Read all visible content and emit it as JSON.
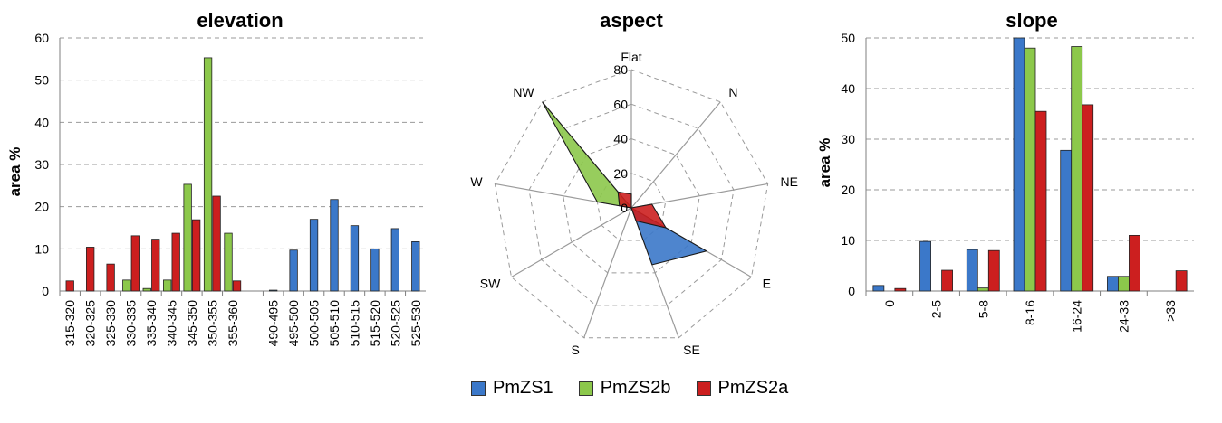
{
  "series_names": [
    "PmZS1",
    "PmZS2b",
    "PmZS2a"
  ],
  "colors": {
    "PmZS1": "#3b78c9",
    "PmZS2b": "#8cc84b",
    "PmZS2a": "#cc1f1f"
  },
  "chart_data": [
    {
      "type": "bar",
      "title": "elevation",
      "ylabel": "area %",
      "ylim": [
        0,
        60
      ],
      "yticks": [
        0,
        10,
        20,
        30,
        40,
        50,
        60
      ],
      "groups": [
        [
          "315-320",
          "320-325",
          "325-330",
          "330-335",
          "335-340",
          "340-345",
          "345-350",
          "350-355",
          "355-360"
        ],
        [
          "490-495",
          "495-500",
          "500-505",
          "505-510",
          "510-515",
          "515-520",
          "520-525",
          "525-530"
        ]
      ],
      "categories": [
        "315-320",
        "320-325",
        "325-330",
        "330-335",
        "335-340",
        "340-345",
        "345-350",
        "350-355",
        "355-360",
        "490-495",
        "495-500",
        "500-505",
        "505-510",
        "510-515",
        "515-520",
        "520-525",
        "525-530"
      ],
      "series": [
        {
          "name": "PmZS1",
          "values": [
            0,
            0,
            0,
            0,
            0,
            0,
            0,
            0,
            0,
            0.2,
            9.7,
            17,
            21.7,
            15.5,
            10,
            14.8,
            11.7
          ]
        },
        {
          "name": "PmZS2b",
          "values": [
            0,
            0,
            0,
            2.6,
            0.6,
            2.6,
            25.3,
            55.3,
            13.7,
            0,
            0,
            0,
            0,
            0,
            0,
            0,
            0
          ]
        },
        {
          "name": "PmZS2a",
          "values": [
            2.4,
            10.4,
            6.4,
            13.1,
            12.3,
            13.7,
            16.9,
            22.5,
            2.4,
            0,
            0,
            0,
            0,
            0,
            0,
            0,
            0
          ]
        }
      ]
    },
    {
      "type": "radar",
      "title": "aspect",
      "rlim": [
        0,
        80
      ],
      "rticks": [
        0,
        20,
        40,
        60,
        80
      ],
      "categories": [
        "Flat",
        "N",
        "NE",
        "E",
        "SE",
        "S",
        "SW",
        "W",
        "NW"
      ],
      "series": [
        {
          "name": "PmZS1",
          "values": [
            0,
            0,
            0,
            50,
            35,
            0,
            0,
            0,
            0
          ]
        },
        {
          "name": "PmZS2b",
          "values": [
            0,
            0,
            0,
            0,
            0,
            0,
            0,
            20,
            80
          ]
        },
        {
          "name": "PmZS2a",
          "values": [
            8,
            0,
            12,
            23,
            8,
            0,
            0,
            7,
            12
          ]
        }
      ]
    },
    {
      "type": "bar",
      "title": "slope",
      "ylabel": "area %",
      "ylim": [
        0,
        50
      ],
      "yticks": [
        0,
        10,
        20,
        30,
        40,
        50
      ],
      "categories": [
        "0",
        "2-5",
        "5-8",
        "8-16",
        "16-24",
        "24-33",
        ">33"
      ],
      "series": [
        {
          "name": "PmZS1",
          "values": [
            1.1,
            9.8,
            8.2,
            50,
            27.8,
            2.9,
            0
          ]
        },
        {
          "name": "PmZS2b",
          "values": [
            0,
            0,
            0.6,
            48,
            48.3,
            2.9,
            0
          ]
        },
        {
          "name": "PmZS2a",
          "values": [
            0.5,
            4.1,
            8,
            35.5,
            36.8,
            11,
            4
          ]
        }
      ]
    }
  ]
}
